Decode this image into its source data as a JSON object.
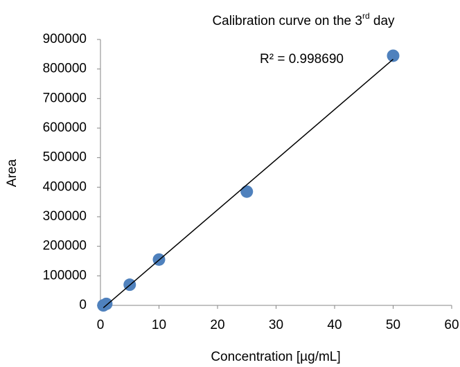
{
  "chart_data": {
    "type": "scatter",
    "title": {
      "text": "Calibration curve on the 3",
      "superscript": "rd",
      "suffix": " day"
    },
    "x_label": "Concentration [µg/mL]",
    "y_label": "Area",
    "annotation": "R² = 0.998690",
    "series": [
      {
        "name": "Area",
        "color": "#4f81bd",
        "x": [
          0.5,
          1,
          5,
          10,
          25,
          50
        ],
        "values": [
          0,
          5000,
          70000,
          155000,
          385000,
          845000
        ]
      }
    ],
    "trendline": {
      "color": "#000000",
      "x": [
        0.5,
        50
      ],
      "values": [
        -8000,
        833000
      ]
    },
    "xlim": [
      0,
      60
    ],
    "xticks": [
      0,
      10,
      20,
      30,
      40,
      50,
      60
    ],
    "ylim": [
      0,
      900000
    ],
    "yticks": [
      0,
      100000,
      200000,
      300000,
      400000,
      500000,
      600000,
      700000,
      800000,
      900000
    ],
    "grid": false
  }
}
